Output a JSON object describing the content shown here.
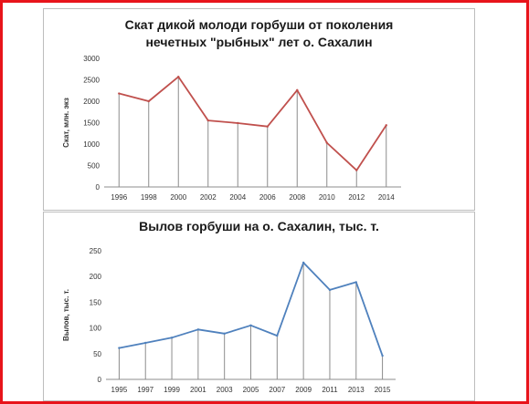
{
  "chart_data": [
    {
      "type": "line",
      "title_line1": "Скат дикой молоди горбуши от поколения",
      "title_line2": "нечетных \"рыбных\" лет о. Сахалин",
      "xlabel": "",
      "ylabel": "Скат, млн. экз",
      "categories": [
        "1996",
        "1998",
        "2000",
        "2002",
        "2004",
        "2006",
        "2008",
        "2010",
        "2012",
        "2014"
      ],
      "values": [
        2180,
        2000,
        2570,
        1550,
        1490,
        1410,
        2260,
        1030,
        390,
        1440
      ],
      "ylim": [
        0,
        3000
      ],
      "yticks": [
        "0",
        "500",
        "1000",
        "1500",
        "2000",
        "2500",
        "3000"
      ],
      "line_color": "#c0504d",
      "drop_lines": true,
      "grid": false
    },
    {
      "type": "line",
      "title_line1": "Вылов горбуши на о. Сахалин, тыс. т.",
      "xlabel": "",
      "ylabel": "Вылов, тыс. т.",
      "categories": [
        "1995",
        "1997",
        "1999",
        "2001",
        "2003",
        "2005",
        "2007",
        "2009",
        "2011",
        "2013",
        "2015"
      ],
      "values": [
        61,
        71,
        81,
        97,
        89,
        105,
        85,
        227,
        174,
        189,
        46
      ],
      "ylim": [
        0,
        250
      ],
      "yticks": [
        "0",
        "50",
        "100",
        "150",
        "200",
        "250"
      ],
      "line_color": "#4f81bd",
      "drop_lines": true,
      "grid": false
    }
  ]
}
